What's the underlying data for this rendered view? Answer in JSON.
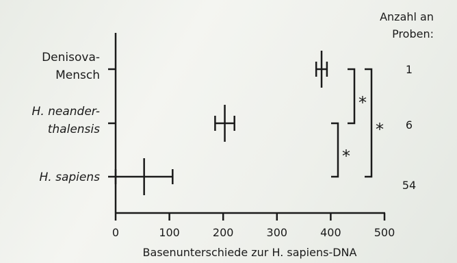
{
  "chart_data": {
    "type": "errorbar",
    "xlabel": "Basenunterschiede zur H. sapiens-DNA",
    "xlim": [
      0,
      500
    ],
    "xticks": [
      0,
      100,
      200,
      300,
      400,
      500
    ],
    "categories": [
      {
        "lines": [
          "Denisova-",
          "Mensch"
        ],
        "italic": false,
        "value": 383,
        "err_low": 373,
        "err_high": 393,
        "count": "1"
      },
      {
        "lines": [
          "H. neander-",
          "thalensis"
        ],
        "italic": true,
        "value": 203,
        "err_low": 185,
        "err_high": 221,
        "count": "6"
      },
      {
        "lines": [
          "H. sapiens"
        ],
        "italic": true,
        "value": 53,
        "err_low": 0,
        "err_high": 106,
        "count": "54"
      }
    ],
    "counts_header": [
      "Anzahl an",
      "Proben:"
    ],
    "significance": [
      {
        "from": 0,
        "to": 1,
        "label": "*"
      },
      {
        "from": 1,
        "to": 2,
        "label": "*"
      },
      {
        "from": 0,
        "to": 2,
        "label": "*"
      }
    ]
  }
}
